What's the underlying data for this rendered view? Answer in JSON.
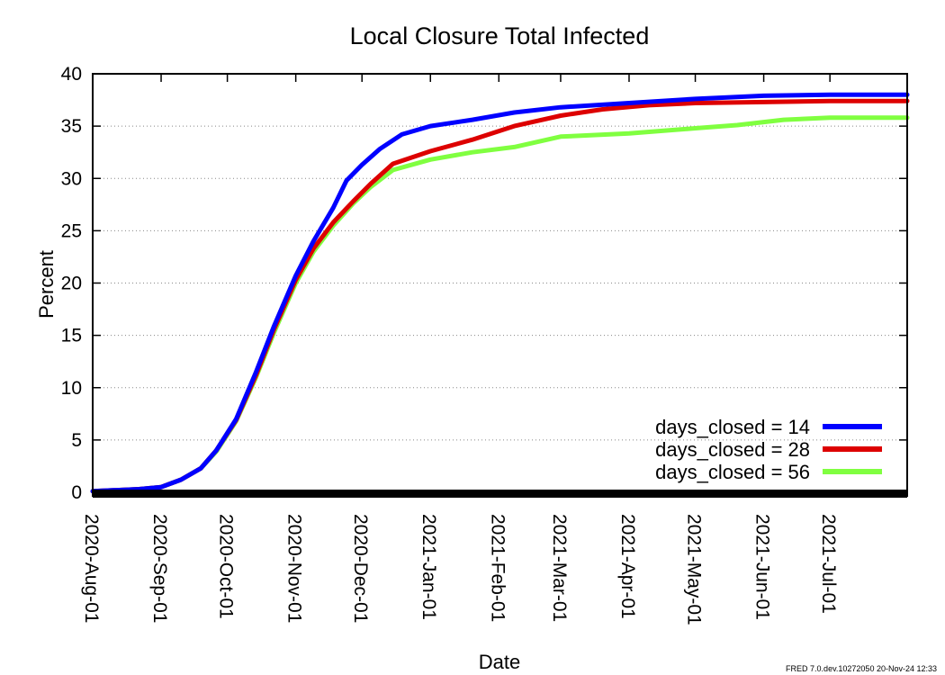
{
  "chart_data": {
    "type": "line",
    "title": "Local Closure Total Infected",
    "xlabel": "Date",
    "ylabel": "Percent",
    "ylim": [
      0,
      40
    ],
    "xlim": [
      "2020-08-01",
      "2021-08-05"
    ],
    "y_ticks": [
      0,
      5,
      10,
      15,
      20,
      25,
      30,
      35,
      40
    ],
    "x_ticks": [
      {
        "date": "2020-08-01",
        "label": "2020-Aug-01"
      },
      {
        "date": "2020-09-01",
        "label": "2020-Sep-01"
      },
      {
        "date": "2020-10-01",
        "label": "2020-Oct-01"
      },
      {
        "date": "2020-11-01",
        "label": "2020-Nov-01"
      },
      {
        "date": "2020-12-01",
        "label": "2020-Dec-01"
      },
      {
        "date": "2021-01-01",
        "label": "2021-Jan-01"
      },
      {
        "date": "2021-02-01",
        "label": "2021-Feb-01"
      },
      {
        "date": "2021-03-01",
        "label": "2021-Mar-01"
      },
      {
        "date": "2021-04-01",
        "label": "2021-Apr-01"
      },
      {
        "date": "2021-05-01",
        "label": "2021-May-01"
      },
      {
        "date": "2021-06-01",
        "label": "2021-Jun-01"
      },
      {
        "date": "2021-07-01",
        "label": "2021-Jul-01"
      }
    ],
    "grid": "horizontal dotted",
    "legend_position": "bottom-right",
    "series": [
      {
        "name": "days_closed = 14",
        "color": "#0000ff",
        "points": [
          {
            "x": "2020-08-01",
            "y": 0.1
          },
          {
            "x": "2020-08-22",
            "y": 0.3
          },
          {
            "x": "2020-09-01",
            "y": 0.5
          },
          {
            "x": "2020-09-10",
            "y": 1.2
          },
          {
            "x": "2020-09-19",
            "y": 2.3
          },
          {
            "x": "2020-09-26",
            "y": 4.0
          },
          {
            "x": "2020-10-05",
            "y": 7.0
          },
          {
            "x": "2020-10-14",
            "y": 11.5
          },
          {
            "x": "2020-10-22",
            "y": 15.8
          },
          {
            "x": "2020-11-01",
            "y": 20.7
          },
          {
            "x": "2020-11-09",
            "y": 24.0
          },
          {
            "x": "2020-11-18",
            "y": 27.2
          },
          {
            "x": "2020-11-24",
            "y": 29.8
          },
          {
            "x": "2020-12-01",
            "y": 31.3
          },
          {
            "x": "2020-12-09",
            "y": 32.8
          },
          {
            "x": "2020-12-19",
            "y": 34.2
          },
          {
            "x": "2021-01-01",
            "y": 35.0
          },
          {
            "x": "2021-01-20",
            "y": 35.6
          },
          {
            "x": "2021-02-08",
            "y": 36.3
          },
          {
            "x": "2021-03-01",
            "y": 36.8
          },
          {
            "x": "2021-04-01",
            "y": 37.2
          },
          {
            "x": "2021-05-01",
            "y": 37.6
          },
          {
            "x": "2021-06-01",
            "y": 37.9
          },
          {
            "x": "2021-07-01",
            "y": 38.0
          },
          {
            "x": "2021-08-05",
            "y": 38.0
          }
        ]
      },
      {
        "name": "days_closed = 28",
        "color": "#dd0000",
        "points": [
          {
            "x": "2020-08-01",
            "y": 0.1
          },
          {
            "x": "2020-08-22",
            "y": 0.3
          },
          {
            "x": "2020-09-01",
            "y": 0.5
          },
          {
            "x": "2020-09-10",
            "y": 1.2
          },
          {
            "x": "2020-09-19",
            "y": 2.3
          },
          {
            "x": "2020-09-26",
            "y": 4.0
          },
          {
            "x": "2020-10-05",
            "y": 6.9
          },
          {
            "x": "2020-10-14",
            "y": 11.2
          },
          {
            "x": "2020-10-22",
            "y": 15.5
          },
          {
            "x": "2020-11-01",
            "y": 20.3
          },
          {
            "x": "2020-11-09",
            "y": 23.3
          },
          {
            "x": "2020-11-18",
            "y": 25.8
          },
          {
            "x": "2020-11-27",
            "y": 27.8
          },
          {
            "x": "2020-12-05",
            "y": 29.5
          },
          {
            "x": "2020-12-15",
            "y": 31.4
          },
          {
            "x": "2021-01-01",
            "y": 32.6
          },
          {
            "x": "2021-01-20",
            "y": 33.7
          },
          {
            "x": "2021-02-08",
            "y": 35.0
          },
          {
            "x": "2021-03-01",
            "y": 36.0
          },
          {
            "x": "2021-03-20",
            "y": 36.6
          },
          {
            "x": "2021-04-10",
            "y": 37.0
          },
          {
            "x": "2021-05-01",
            "y": 37.2
          },
          {
            "x": "2021-06-01",
            "y": 37.3
          },
          {
            "x": "2021-07-01",
            "y": 37.4
          },
          {
            "x": "2021-08-05",
            "y": 37.4
          }
        ]
      },
      {
        "name": "days_closed = 56",
        "color": "#80ff40",
        "points": [
          {
            "x": "2020-08-01",
            "y": 0.1
          },
          {
            "x": "2020-08-22",
            "y": 0.3
          },
          {
            "x": "2020-09-01",
            "y": 0.5
          },
          {
            "x": "2020-09-10",
            "y": 1.2
          },
          {
            "x": "2020-09-19",
            "y": 2.3
          },
          {
            "x": "2020-09-26",
            "y": 3.9
          },
          {
            "x": "2020-10-05",
            "y": 6.8
          },
          {
            "x": "2020-10-14",
            "y": 11.0
          },
          {
            "x": "2020-10-22",
            "y": 15.2
          },
          {
            "x": "2020-11-01",
            "y": 20.0
          },
          {
            "x": "2020-11-09",
            "y": 23.0
          },
          {
            "x": "2020-11-18",
            "y": 25.5
          },
          {
            "x": "2020-11-27",
            "y": 27.6
          },
          {
            "x": "2020-12-05",
            "y": 29.2
          },
          {
            "x": "2020-12-15",
            "y": 30.8
          },
          {
            "x": "2021-01-01",
            "y": 31.8
          },
          {
            "x": "2021-01-20",
            "y": 32.5
          },
          {
            "x": "2021-02-08",
            "y": 33.0
          },
          {
            "x": "2021-03-01",
            "y": 34.0
          },
          {
            "x": "2021-04-01",
            "y": 34.3
          },
          {
            "x": "2021-05-01",
            "y": 34.8
          },
          {
            "x": "2021-05-20",
            "y": 35.1
          },
          {
            "x": "2021-06-10",
            "y": 35.6
          },
          {
            "x": "2021-07-01",
            "y": 35.8
          },
          {
            "x": "2021-08-05",
            "y": 35.8
          }
        ]
      }
    ]
  },
  "footer": "FRED 7.0.dev.10272050 20-Nov-24 12:33"
}
